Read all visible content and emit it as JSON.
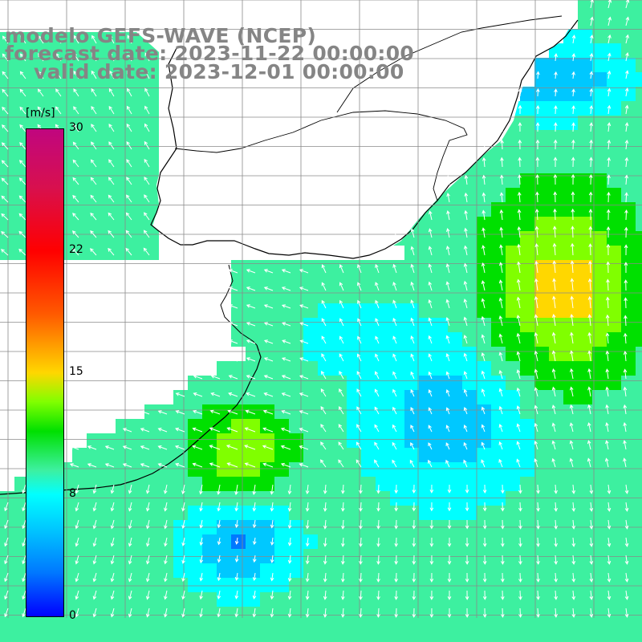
{
  "title": {
    "model": "modelo GEFS-WAVE (NCEP)",
    "forecast": "forecast date: 2023-11-22 00:00:00",
    "valid": "valid date: 2023-12-01 00:00:00"
  },
  "colorbar": {
    "unit": "[m/s]",
    "ticks": [
      "30",
      "22",
      "15",
      "8",
      "0"
    ],
    "range": [
      0,
      30
    ],
    "colors": [
      "#0000ff",
      "#0078ff",
      "#00c8ff",
      "#00ffff",
      "#3df0a0",
      "#00e000",
      "#80ff00",
      "#ffd700",
      "#ff5a00",
      "#ff0000",
      "#d8104e",
      "#c0067f"
    ]
  },
  "map": {
    "variable": "wind speed and direction",
    "land_color": "#ffffff",
    "grid": true,
    "grid_color": "#8a8a8a"
  }
}
